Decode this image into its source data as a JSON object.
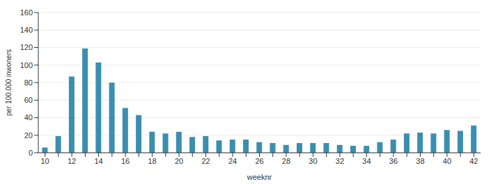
{
  "chart_data": {
    "type": "bar",
    "x_label": "weeknr",
    "y_label": "per 100.000 inwoners",
    "categories": [
      "10",
      null,
      "12",
      null,
      "14",
      null,
      "16",
      null,
      "18",
      null,
      "20",
      null,
      "22",
      null,
      "24",
      null,
      "26",
      null,
      "28",
      null,
      "30",
      null,
      "32",
      null,
      "34",
      null,
      "36",
      null,
      "38",
      null,
      "40",
      null,
      "42"
    ],
    "values": [
      6,
      19,
      87,
      119,
      103,
      80,
      51,
      43,
      24,
      22,
      24,
      18,
      19,
      14,
      15,
      15,
      12,
      11,
      9,
      11,
      11,
      11,
      9,
      8,
      8,
      12,
      15,
      22,
      23,
      22,
      26,
      25,
      31
    ],
    "color": "#3a8fb0",
    "ylim": [
      0,
      160
    ],
    "yticks": [
      0,
      20,
      40,
      60,
      80,
      100,
      120,
      140,
      160
    ],
    "grid": true
  }
}
